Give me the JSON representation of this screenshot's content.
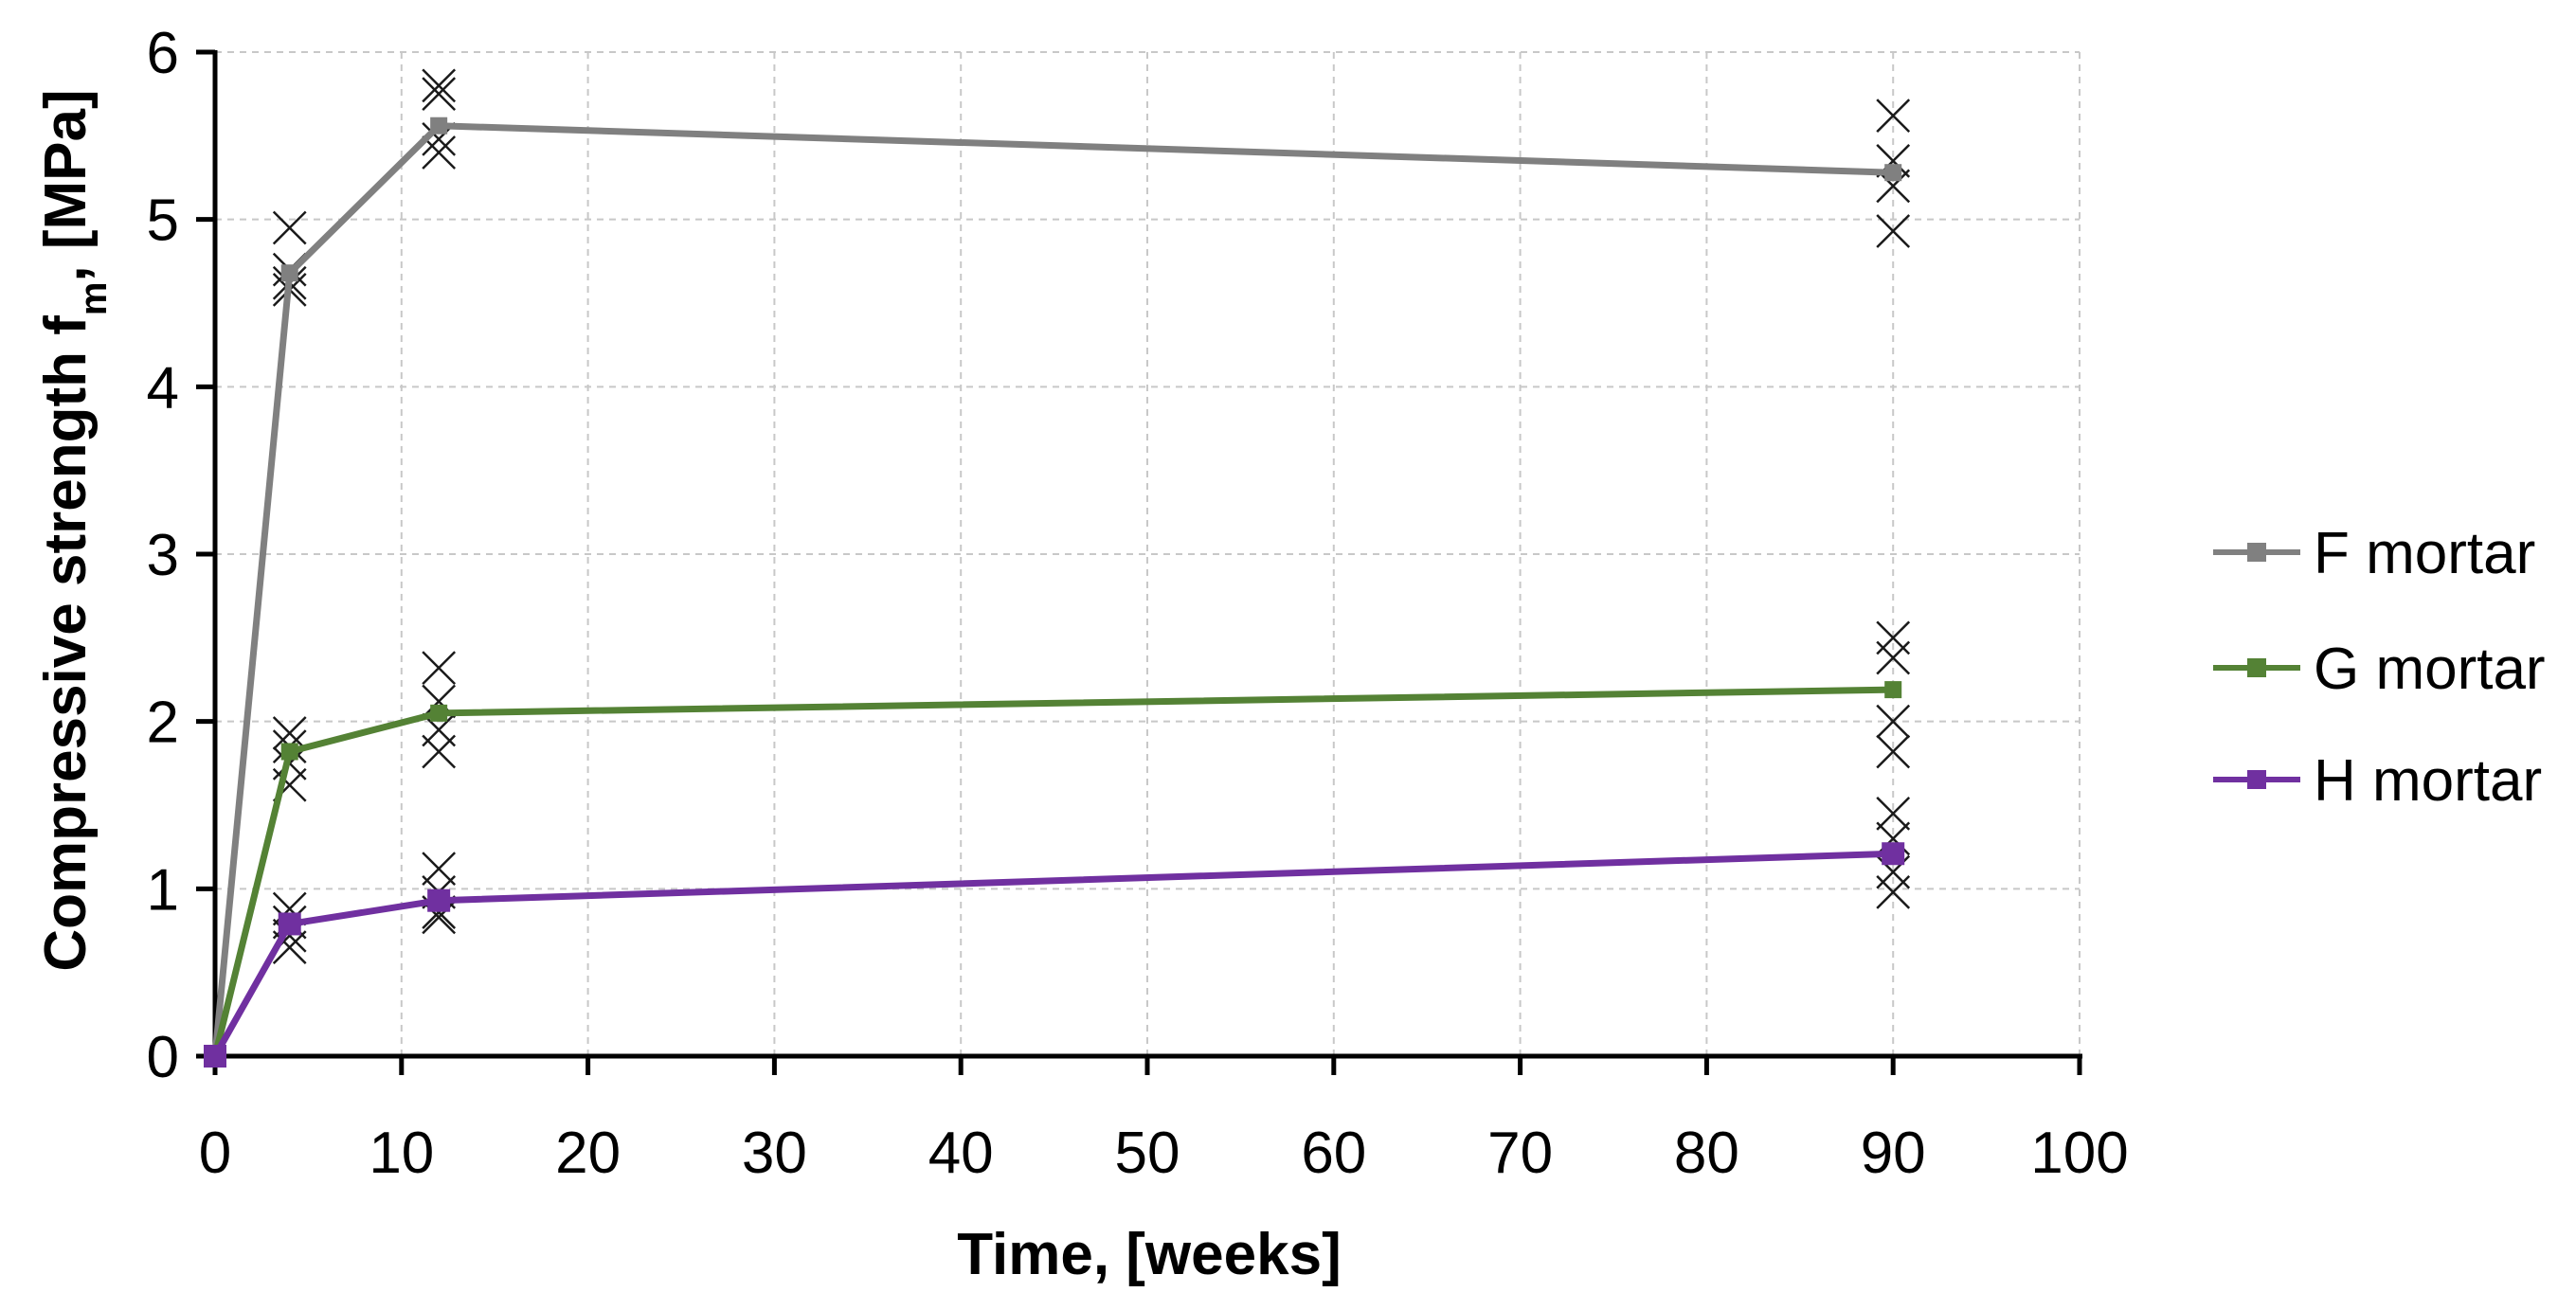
{
  "chart_data": {
    "type": "line",
    "title": "",
    "xlabel": "Time, [weeks]",
    "ylabel": {
      "main": "Compressive strength f",
      "subscript": "m",
      "suffix": ", [MPa]"
    },
    "xlim": [
      0,
      100
    ],
    "ylim": [
      0,
      6
    ],
    "xticks": [
      "0",
      "10",
      "20",
      "30",
      "40",
      "50",
      "60",
      "70",
      "80",
      "90",
      "100"
    ],
    "yticks": [
      "0",
      "1",
      "2",
      "3",
      "4",
      "5",
      "6"
    ],
    "grid": true,
    "legend_position": "right",
    "series": [
      {
        "name": "F mortar",
        "color": "#808080",
        "x": [
          0,
          4,
          12,
          90
        ],
        "y": [
          0,
          4.68,
          5.56,
          5.28
        ],
        "individual": [
          {
            "x": 4,
            "values": [
              4.95,
              4.7,
              4.62,
              4.58
            ]
          },
          {
            "x": 12,
            "values": [
              5.8,
              5.75,
              5.48,
              5.4
            ]
          },
          {
            "x": 90,
            "values": [
              5.62,
              5.35,
              5.2,
              4.93
            ]
          }
        ]
      },
      {
        "name": "G mortar",
        "color": "#548235",
        "x": [
          0,
          4,
          12,
          90
        ],
        "y": [
          0,
          1.82,
          2.05,
          2.19
        ],
        "individual": [
          {
            "x": 4,
            "values": [
              1.93,
              1.85,
              1.75,
              1.62
            ]
          },
          {
            "x": 12,
            "values": [
              2.32,
              2.12,
              1.95,
              1.82
            ]
          },
          {
            "x": 90,
            "values": [
              2.5,
              2.38,
              2.0,
              1.82
            ]
          }
        ]
      },
      {
        "name": "H mortar",
        "color": "#7030A0",
        "x": [
          0,
          4,
          12,
          90
        ],
        "y": [
          0,
          0.79,
          0.93,
          1.21
        ],
        "individual": [
          {
            "x": 4,
            "values": [
              0.88,
              0.8,
              0.72,
              0.65
            ]
          },
          {
            "x": 12,
            "values": [
              1.12,
              0.98,
              0.86,
              0.83
            ]
          },
          {
            "x": 90,
            "values": [
              1.45,
              1.3,
              1.1,
              0.98
            ]
          }
        ]
      }
    ]
  }
}
